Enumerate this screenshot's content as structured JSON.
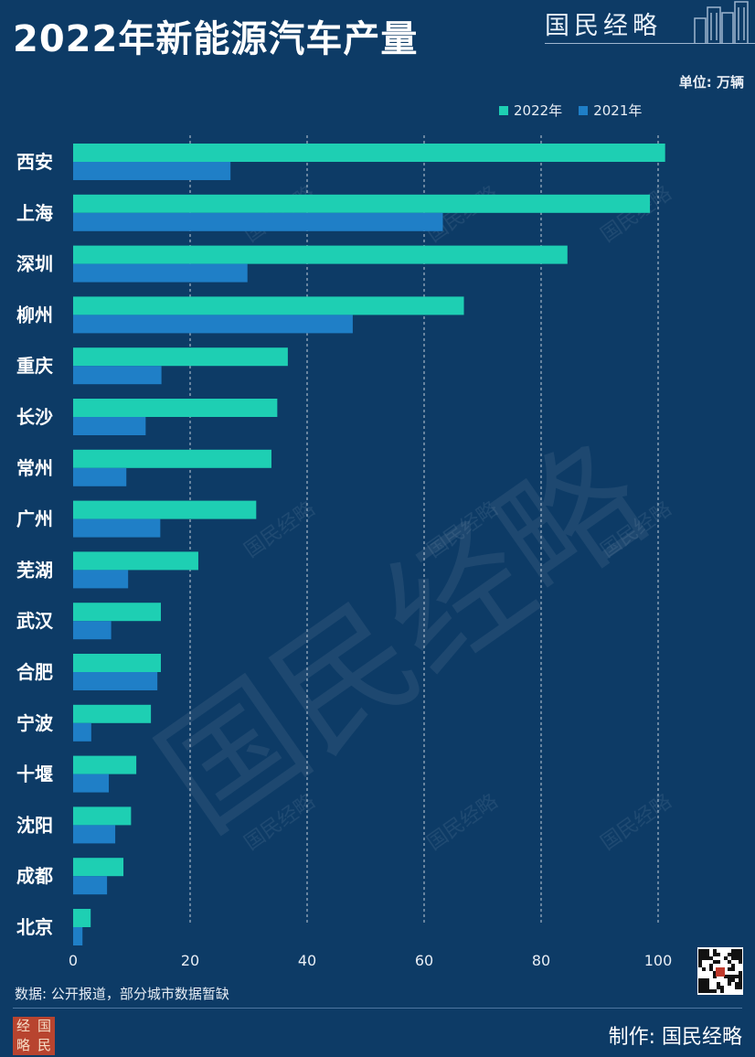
{
  "header": {
    "title": "2022年新能源汽车产量",
    "brand": "国民经略",
    "unit": "单位: 万辆"
  },
  "footer": {
    "source": "数据: 公开报道，部分城市数据暂缺",
    "maker": "制作: 国民经略",
    "seal_chars": [
      "经",
      "国",
      "略",
      "民"
    ]
  },
  "watermark": "国民经略",
  "colors": {
    "bg": "#0d3b66",
    "series_2022": "#1ecfb3",
    "series_2021": "#1f7fc7",
    "seal": "#b8442f"
  },
  "chart_data": {
    "type": "bar",
    "orientation": "horizontal",
    "categories": [
      "西安",
      "上海",
      "深圳",
      "柳州",
      "重庆",
      "长沙",
      "常州",
      "广州",
      "芜湖",
      "武汉",
      "合肥",
      "宁波",
      "十堰",
      "沈阳",
      "成都",
      "北京"
    ],
    "series": [
      {
        "name": "2022年",
        "color": "#1ecfb3",
        "values": [
          101.2,
          98.6,
          84.5,
          66.8,
          36.7,
          34.9,
          33.9,
          31.3,
          21.4,
          15.0,
          15.0,
          13.3,
          10.8,
          9.9,
          8.6,
          3.0
        ]
      },
      {
        "name": "2021年",
        "color": "#1f7fc7",
        "values": [
          26.9,
          63.2,
          29.8,
          47.8,
          15.1,
          12.4,
          9.1,
          14.9,
          9.4,
          6.5,
          14.4,
          3.1,
          6.1,
          7.2,
          5.8,
          1.6
        ]
      }
    ],
    "xlim": [
      0,
      100
    ],
    "xticks": [
      0,
      20,
      40,
      60,
      80,
      100
    ],
    "legend_position": "top-right",
    "grid": "vertical dashed"
  }
}
